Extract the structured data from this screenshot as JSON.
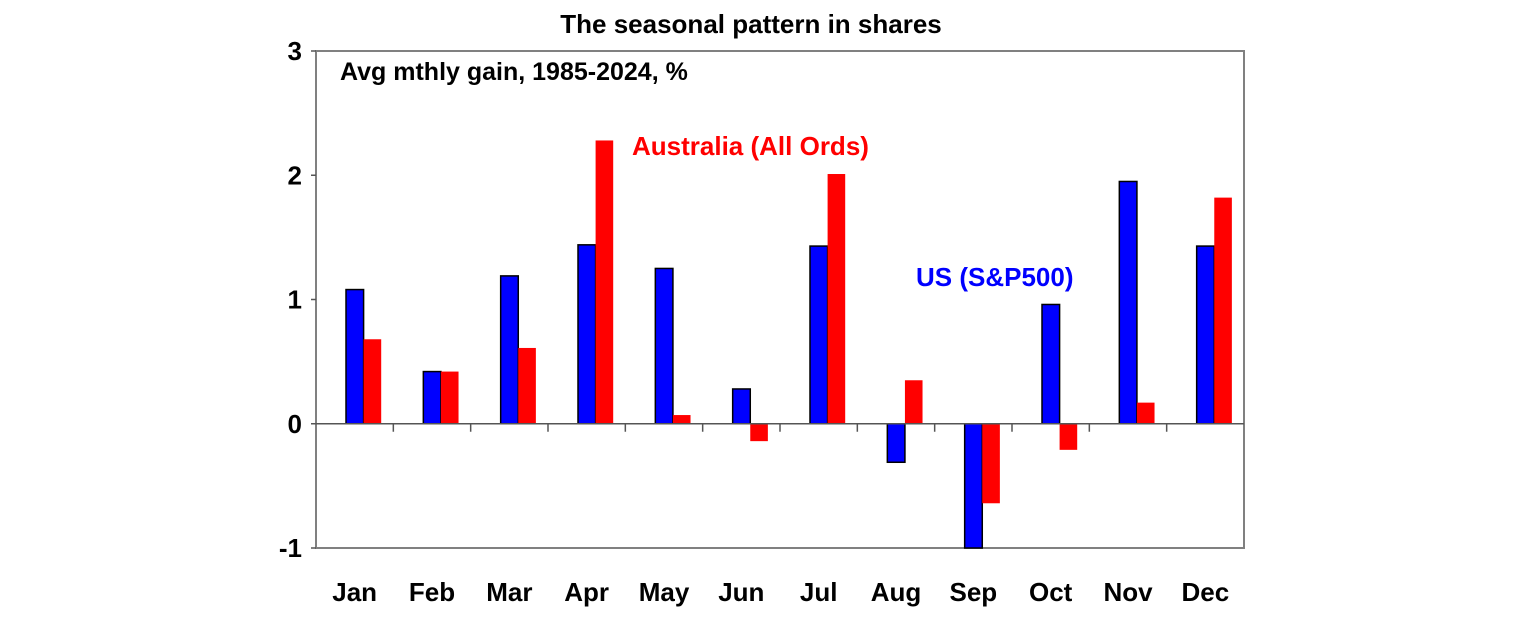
{
  "chart_data": {
    "type": "bar",
    "title": "The seasonal pattern in shares",
    "subtitle": "Avg mthly gain, 1985-2024, %",
    "xlabel": "",
    "ylabel": "",
    "ylim": [
      -1,
      3
    ],
    "yticks": [
      "3",
      "2",
      "1",
      "0",
      "-1"
    ],
    "ytick_values": [
      3,
      2,
      1,
      0,
      -1
    ],
    "grid": false,
    "categories": [
      "Jan",
      "Feb",
      "Mar",
      "Apr",
      "May",
      "Jun",
      "Jul",
      "Aug",
      "Sep",
      "Oct",
      "Nov",
      "Dec"
    ],
    "series": [
      {
        "name": "US (S&P500)",
        "color": "#0000ff",
        "values": [
          1.08,
          0.42,
          1.19,
          1.44,
          1.25,
          0.28,
          1.43,
          -0.31,
          -1.0,
          0.96,
          1.95,
          1.43
        ]
      },
      {
        "name": "Australia (All Ords)",
        "color": "#ff0000",
        "values": [
          0.68,
          0.42,
          0.61,
          2.28,
          0.07,
          -0.14,
          2.01,
          0.35,
          -0.64,
          -0.21,
          0.17,
          1.82
        ]
      }
    ],
    "legend": "inline labels"
  }
}
